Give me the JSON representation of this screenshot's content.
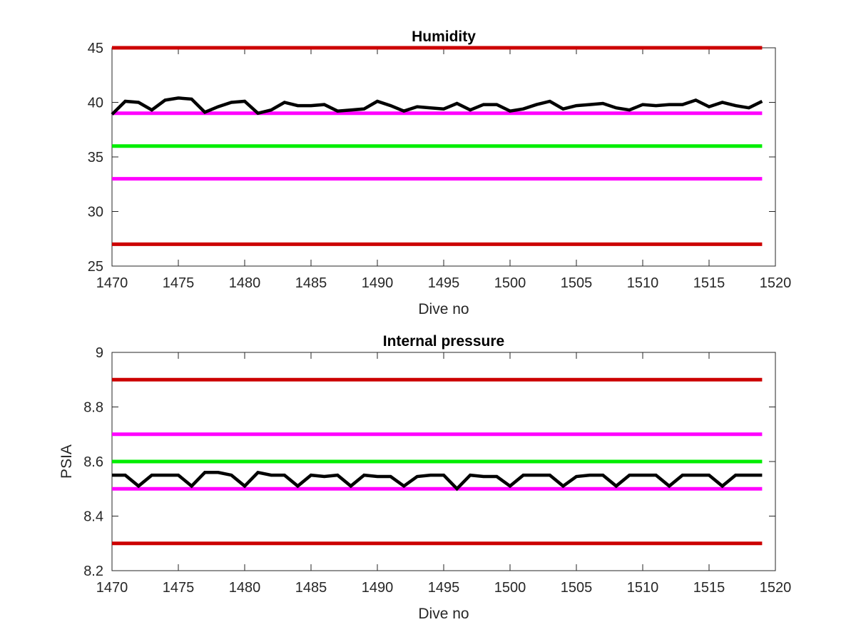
{
  "chart_data": [
    {
      "type": "line",
      "title": "Humidity",
      "xlabel": "Dive no",
      "ylabel": "",
      "xlim": [
        1470,
        1520
      ],
      "ylim": [
        25,
        45
      ],
      "xticks": [
        "1470",
        "1475",
        "1480",
        "1485",
        "1490",
        "1495",
        "1500",
        "1505",
        "1510",
        "1515",
        "1520"
      ],
      "yticks": [
        "25",
        "30",
        "35",
        "40",
        "45"
      ],
      "grid": false,
      "thresholds": [
        {
          "value": 45,
          "color": "#cc0000"
        },
        {
          "value": 39,
          "color": "#ff00ff"
        },
        {
          "value": 36,
          "color": "#00ee00"
        },
        {
          "value": 33,
          "color": "#ff00ff"
        },
        {
          "value": 27,
          "color": "#cc0000"
        }
      ],
      "series": [
        {
          "color": "#000000",
          "x": [
            1470,
            1471,
            1472,
            1473,
            1474,
            1475,
            1476,
            1477,
            1478,
            1479,
            1480,
            1481,
            1482,
            1483,
            1484,
            1485,
            1486,
            1487,
            1488,
            1489,
            1490,
            1491,
            1492,
            1493,
            1494,
            1495,
            1496,
            1497,
            1498,
            1499,
            1500,
            1501,
            1502,
            1503,
            1504,
            1505,
            1506,
            1507,
            1508,
            1509,
            1510,
            1511,
            1512,
            1513,
            1514,
            1515,
            1516,
            1517,
            1518,
            1519
          ],
          "y": [
            38.9,
            40.1,
            40.0,
            39.3,
            40.2,
            40.4,
            40.3,
            39.1,
            39.6,
            40.0,
            40.1,
            39.0,
            39.3,
            40.0,
            39.7,
            39.7,
            39.8,
            39.2,
            39.3,
            39.4,
            40.1,
            39.7,
            39.2,
            39.6,
            39.5,
            39.4,
            39.9,
            39.3,
            39.8,
            39.8,
            39.2,
            39.4,
            39.8,
            40.1,
            39.4,
            39.7,
            39.8,
            39.9,
            39.5,
            39.3,
            39.8,
            39.7,
            39.8,
            39.8,
            40.2,
            39.6,
            40.0,
            39.7,
            39.5,
            40.1
          ]
        }
      ]
    },
    {
      "type": "line",
      "title": "Internal pressure",
      "xlabel": "Dive no",
      "ylabel": "PSIA",
      "xlim": [
        1470,
        1520
      ],
      "ylim": [
        8.2,
        9
      ],
      "xticks": [
        "1470",
        "1475",
        "1480",
        "1485",
        "1490",
        "1495",
        "1500",
        "1505",
        "1510",
        "1515",
        "1520"
      ],
      "yticks": [
        "8.2",
        "8.4",
        "8.6",
        "8.8",
        "9"
      ],
      "grid": false,
      "thresholds": [
        {
          "value": 8.9,
          "color": "#cc0000"
        },
        {
          "value": 8.7,
          "color": "#ff00ff"
        },
        {
          "value": 8.6,
          "color": "#00ee00"
        },
        {
          "value": 8.5,
          "color": "#ff00ff"
        },
        {
          "value": 8.3,
          "color": "#cc0000"
        }
      ],
      "series": [
        {
          "color": "#000000",
          "x": [
            1470,
            1471,
            1472,
            1473,
            1474,
            1475,
            1476,
            1477,
            1478,
            1479,
            1480,
            1481,
            1482,
            1483,
            1484,
            1485,
            1486,
            1487,
            1488,
            1489,
            1490,
            1491,
            1492,
            1493,
            1494,
            1495,
            1496,
            1497,
            1498,
            1499,
            1500,
            1501,
            1502,
            1503,
            1504,
            1505,
            1506,
            1507,
            1508,
            1509,
            1510,
            1511,
            1512,
            1513,
            1514,
            1515,
            1516,
            1517,
            1518,
            1519
          ],
          "y": [
            8.55,
            8.55,
            8.51,
            8.55,
            8.55,
            8.55,
            8.51,
            8.56,
            8.56,
            8.55,
            8.51,
            8.56,
            8.55,
            8.55,
            8.51,
            8.55,
            8.545,
            8.55,
            8.51,
            8.55,
            8.545,
            8.545,
            8.51,
            8.545,
            8.55,
            8.55,
            8.5,
            8.55,
            8.545,
            8.545,
            8.51,
            8.55,
            8.55,
            8.55,
            8.51,
            8.545,
            8.55,
            8.55,
            8.51,
            8.55,
            8.55,
            8.55,
            8.51,
            8.55,
            8.55,
            8.55,
            8.51,
            8.55,
            8.55,
            8.55
          ]
        }
      ]
    }
  ]
}
